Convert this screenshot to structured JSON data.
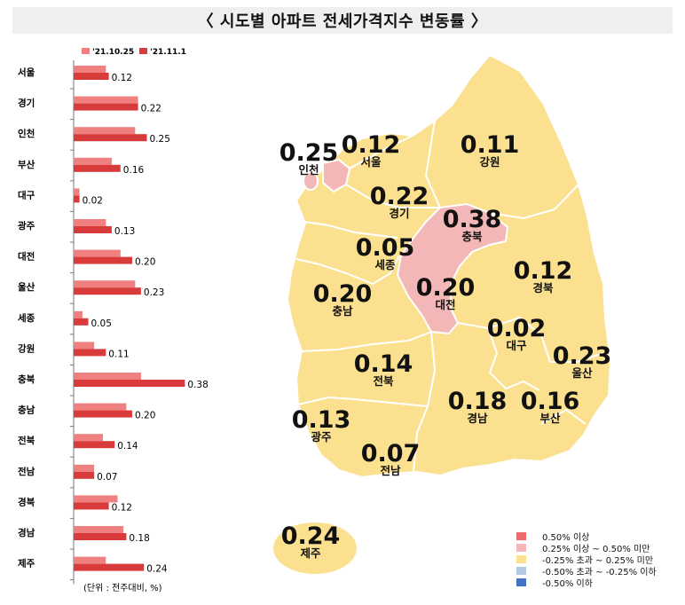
{
  "title": "〈 시도별 아파트 전세가격지수 변동률 〉",
  "unit_note": "(단위 : 전주대비, %)",
  "colors": {
    "prev_week": "#f08080",
    "this_week": "#d93a3a",
    "map_base": "#fbe08f",
    "map_border": "#ffffff",
    "legend": [
      "#e96b6b",
      "#f4b7b7",
      "#fbe08f",
      "#b5c8e2",
      "#4472c4"
    ]
  },
  "chart_data": {
    "type": "bar",
    "orientation": "horizontal",
    "categories": [
      "서울",
      "경기",
      "인천",
      "부산",
      "대구",
      "광주",
      "대전",
      "울산",
      "세종",
      "강원",
      "충북",
      "충남",
      "전북",
      "전남",
      "경북",
      "경남",
      "제주"
    ],
    "series": [
      {
        "name": "'21.10.25",
        "values": [
          0.11,
          0.22,
          0.21,
          0.13,
          0.02,
          0.11,
          0.16,
          0.21,
          0.03,
          0.07,
          0.23,
          0.18,
          0.1,
          0.07,
          0.15,
          0.17,
          0.11
        ]
      },
      {
        "name": "'21.11.1",
        "values": [
          0.12,
          0.22,
          0.25,
          0.16,
          0.02,
          0.13,
          0.2,
          0.23,
          0.05,
          0.11,
          0.38,
          0.2,
          0.14,
          0.07,
          0.12,
          0.18,
          0.24
        ]
      }
    ],
    "value_labels": [
      "0.12",
      "0.22",
      "0.25",
      "0.16",
      "0.02",
      "0.13",
      "0.20",
      "0.23",
      "0.05",
      "0.11",
      "0.38",
      "0.20",
      "0.14",
      "0.07",
      "0.12",
      "0.18",
      "0.24"
    ],
    "xlim": [
      0,
      0.4
    ],
    "grid": false,
    "legend_position": "top"
  },
  "map": {
    "regions": [
      {
        "name": "인천",
        "value": "0.25",
        "category": 1
      },
      {
        "name": "서울",
        "value": "0.12",
        "category": 2
      },
      {
        "name": "강원",
        "value": "0.11",
        "category": 2
      },
      {
        "name": "경기",
        "value": "0.22",
        "category": 2
      },
      {
        "name": "충북",
        "value": "0.38",
        "category": 1
      },
      {
        "name": "세종",
        "value": "0.05",
        "category": 2
      },
      {
        "name": "경북",
        "value": "0.12",
        "category": 2
      },
      {
        "name": "충남",
        "value": "0.20",
        "category": 2
      },
      {
        "name": "대전",
        "value": "0.20",
        "category": 2
      },
      {
        "name": "대구",
        "value": "0.02",
        "category": 2
      },
      {
        "name": "울산",
        "value": "0.23",
        "category": 2
      },
      {
        "name": "전북",
        "value": "0.14",
        "category": 2
      },
      {
        "name": "경남",
        "value": "0.18",
        "category": 2
      },
      {
        "name": "부산",
        "value": "0.16",
        "category": 2
      },
      {
        "name": "광주",
        "value": "0.13",
        "category": 2
      },
      {
        "name": "전남",
        "value": "0.07",
        "category": 2
      },
      {
        "name": "제주",
        "value": "0.24",
        "category": 2
      }
    ],
    "legend": [
      "0.50% 이상",
      "0.25% 이상 ~ 0.50% 미만",
      "-0.25% 초과 ~ 0.25% 미만",
      "-0.50% 초과 ~ -0.25% 이하",
      "-0.50% 이하"
    ]
  }
}
